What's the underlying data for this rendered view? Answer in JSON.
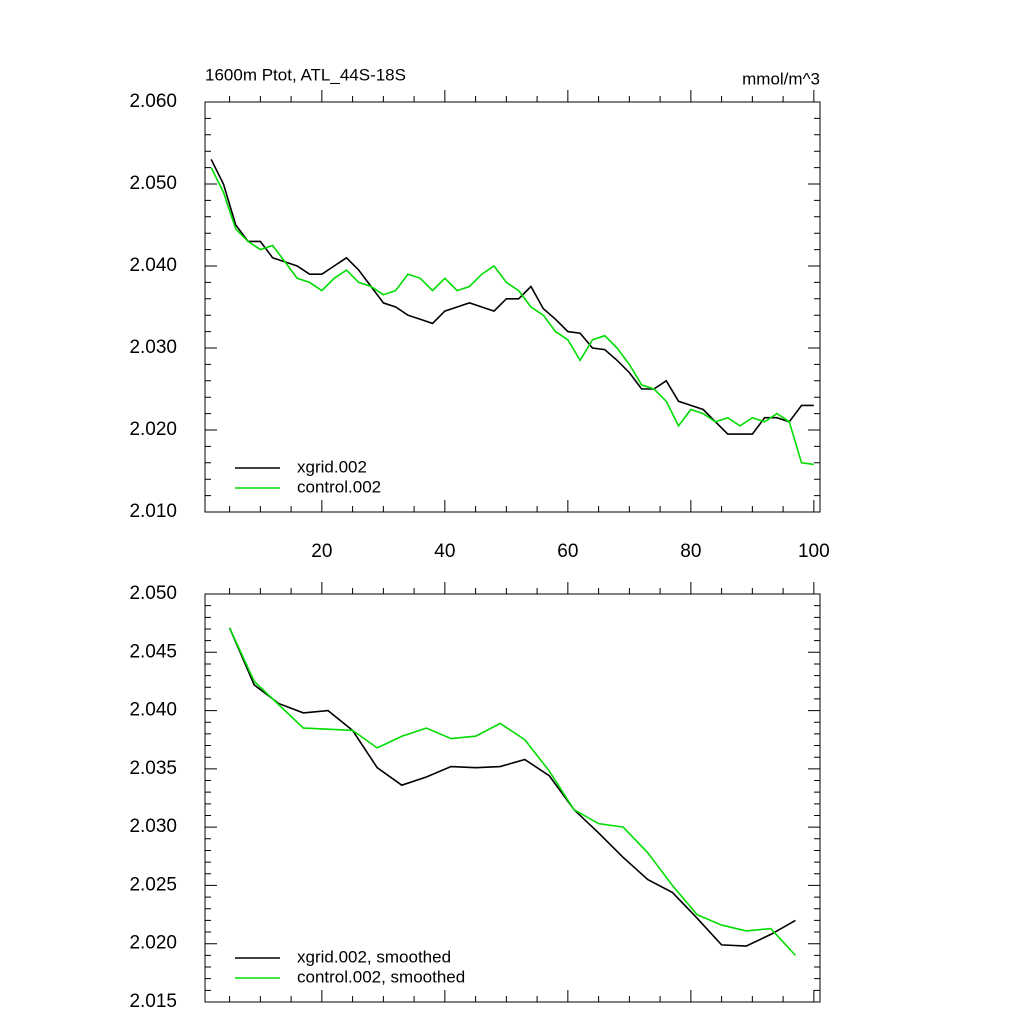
{
  "chart_data": [
    {
      "type": "line",
      "title": "1600m Ptot, ATL_44S-18S",
      "subtitle": "mmol/m^3",
      "x": [
        2,
        4,
        6,
        8,
        10,
        12,
        14,
        16,
        18,
        20,
        22,
        24,
        26,
        28,
        30,
        32,
        34,
        36,
        38,
        40,
        42,
        44,
        46,
        48,
        50,
        52,
        54,
        56,
        58,
        60,
        62,
        64,
        66,
        68,
        70,
        72,
        74,
        76,
        78,
        80,
        82,
        84,
        86,
        88,
        90,
        92,
        94,
        96,
        98,
        100
      ],
      "series": [
        {
          "name": "xgrid.002",
          "color": "#000000",
          "values": [
            2.053,
            2.05,
            2.045,
            2.043,
            2.043,
            2.041,
            2.0405,
            2.04,
            2.039,
            2.039,
            2.04,
            2.041,
            2.0395,
            2.0375,
            2.0355,
            2.035,
            2.034,
            2.0335,
            2.033,
            2.0345,
            2.035,
            2.0355,
            2.035,
            2.0345,
            2.036,
            2.036,
            2.0375,
            2.0348,
            2.0335,
            2.032,
            2.0318,
            2.03,
            2.0298,
            2.0285,
            2.027,
            2.025,
            2.025,
            2.026,
            2.0235,
            2.023,
            2.0225,
            2.021,
            2.0195,
            2.0195,
            2.0195,
            2.0215,
            2.0215,
            2.021,
            2.023,
            2.023
          ]
        },
        {
          "name": "control.002",
          "color": "#00dd00",
          "values": [
            2.052,
            2.049,
            2.0445,
            2.043,
            2.042,
            2.0425,
            2.0405,
            2.0385,
            2.038,
            2.037,
            2.0385,
            2.0395,
            2.038,
            2.0375,
            2.0365,
            2.037,
            2.039,
            2.0385,
            2.037,
            2.0385,
            2.037,
            2.0375,
            2.039,
            2.04,
            2.038,
            2.037,
            2.035,
            2.034,
            2.032,
            2.031,
            2.0285,
            2.031,
            2.0315,
            2.03,
            2.028,
            2.0255,
            2.025,
            2.0235,
            2.0205,
            2.0225,
            2.022,
            2.021,
            2.0215,
            2.0205,
            2.0215,
            2.021,
            2.022,
            2.021,
            2.016,
            2.0158
          ]
        }
      ],
      "xlim": [
        1,
        101
      ],
      "xticks": [
        20,
        40,
        60,
        80,
        100
      ],
      "xtick_labels": true,
      "ylim": [
        2.01,
        2.06
      ],
      "yticks": [
        {
          "value": 2.01,
          "label": "2.010"
        },
        {
          "value": 2.02,
          "label": "2.020"
        },
        {
          "value": 2.03,
          "label": "2.030"
        },
        {
          "value": 2.04,
          "label": "2.040"
        },
        {
          "value": 2.05,
          "label": "2.050"
        },
        {
          "value": 2.06,
          "label": "2.060"
        }
      ],
      "legend": "lower left"
    },
    {
      "type": "line",
      "x": [
        5,
        9,
        13,
        17,
        21,
        25,
        29,
        33,
        37,
        41,
        45,
        49,
        53,
        57,
        61,
        65,
        69,
        73,
        77,
        81,
        85,
        89,
        93,
        97
      ],
      "series": [
        {
          "name": "xgrid.002, smoothed",
          "color": "#000000",
          "values": [
            2.0471,
            2.0422,
            2.0406,
            2.0398,
            2.04,
            2.0383,
            2.0351,
            2.0336,
            2.0343,
            2.0352,
            2.0351,
            2.0352,
            2.0358,
            2.0344,
            2.0315,
            2.0295,
            2.0274,
            2.0255,
            2.0244,
            2.0222,
            2.0199,
            2.0198,
            2.0208,
            2.022
          ]
        },
        {
          "name": "control.002, smoothed",
          "color": "#00dd00",
          "values": [
            2.0471,
            2.0425,
            2.0405,
            2.0385,
            2.0384,
            2.0383,
            2.0368,
            2.0378,
            2.0385,
            2.0376,
            2.0378,
            2.0389,
            2.0375,
            2.0348,
            2.0315,
            2.0303,
            2.03,
            2.0278,
            2.025,
            2.0225,
            2.0216,
            2.0211,
            2.0213,
            2.019
          ]
        }
      ],
      "xlim": [
        1,
        101
      ],
      "xticks": [
        20,
        40,
        60,
        80,
        100
      ],
      "xtick_labels": false,
      "ylim": [
        2.015,
        2.05
      ],
      "yticks": [
        {
          "value": 2.015,
          "label": "2.015"
        },
        {
          "value": 2.02,
          "label": "2.020"
        },
        {
          "value": 2.025,
          "label": "2.025"
        },
        {
          "value": 2.03,
          "label": "2.030"
        },
        {
          "value": 2.035,
          "label": "2.035"
        },
        {
          "value": 2.04,
          "label": "2.040"
        },
        {
          "value": 2.045,
          "label": "2.045"
        },
        {
          "value": 2.05,
          "label": "2.050"
        }
      ],
      "legend": "lower left"
    }
  ]
}
